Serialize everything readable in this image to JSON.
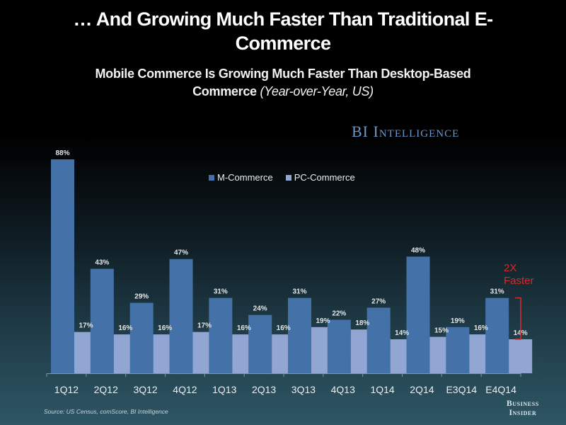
{
  "header": {
    "title": "… And Growing Much Faster Than Traditional E-Commerce",
    "subtitle_main": "Mobile Commerce Is Growing Much Faster Than Desktop-Based Commerce",
    "subtitle_note": "(Year-over-Year, US)"
  },
  "brand": "BI Intelligence",
  "annotation": {
    "line1": "2X",
    "line2": "Faster",
    "color": "#d42b2b"
  },
  "footer": {
    "source": "Source: US Census, comScore, BI Intelligence",
    "logo_line1": "Business",
    "logo_line2": "Insider"
  },
  "chart_data": {
    "type": "bar",
    "title": "Mobile Commerce Is Growing Much Faster Than Desktop-Based Commerce (Year-over-Year, US)",
    "xlabel": "",
    "ylabel": "",
    "ylim": [
      0,
      88
    ],
    "grid": false,
    "legend_position": "top-center",
    "categories": [
      "1Q12",
      "2Q12",
      "3Q12",
      "4Q12",
      "1Q13",
      "2Q13",
      "3Q13",
      "4Q13",
      "1Q14",
      "2Q14",
      "E3Q14",
      "E4Q14"
    ],
    "series": [
      {
        "name": "M-Commerce",
        "color": "#4472a8",
        "values": [
          88,
          43,
          29,
          47,
          31,
          24,
          31,
          22,
          27,
          48,
          19,
          31
        ],
        "labels": [
          "88%",
          "43%",
          "29%",
          "47%",
          "31%",
          "24%",
          "31%",
          "22%",
          "27%",
          "48%",
          "19%",
          "31%"
        ]
      },
      {
        "name": "PC-Commerce",
        "color": "#92a6d4",
        "values": [
          17,
          16,
          16,
          17,
          16,
          16,
          19,
          18,
          14,
          15,
          16,
          14
        ],
        "labels": [
          "17%",
          "16%",
          "16%",
          "17%",
          "16%",
          "16%",
          "19%",
          "18%",
          "14%",
          "15%",
          "16%",
          "14%"
        ]
      }
    ],
    "annotations": [
      "2X Faster"
    ]
  }
}
